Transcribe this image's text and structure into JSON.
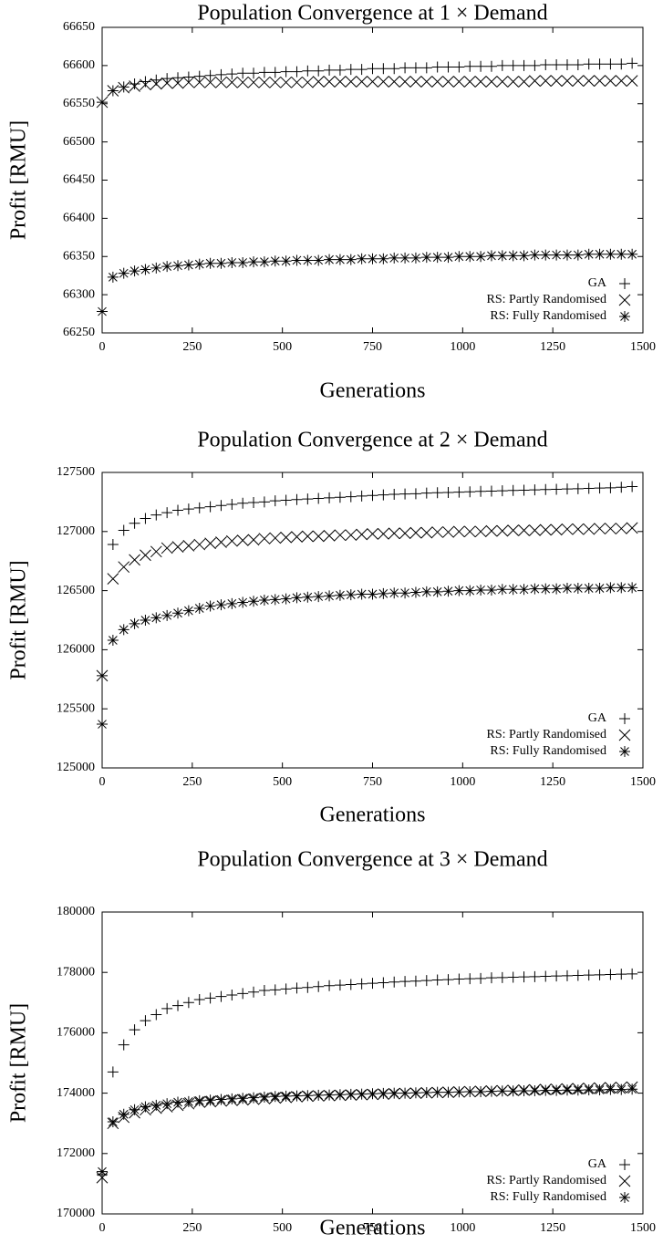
{
  "chart_data": [
    {
      "type": "scatter",
      "title": "Population Convergence at 1 × Demand",
      "xlabel": "Generations",
      "ylabel": "Profit [RMU]",
      "x": [
        0,
        30,
        60,
        90,
        120,
        150,
        180,
        210,
        240,
        270,
        300,
        330,
        360,
        390,
        420,
        450,
        480,
        510,
        540,
        570,
        600,
        630,
        660,
        690,
        720,
        750,
        780,
        810,
        840,
        870,
        900,
        930,
        960,
        990,
        1020,
        1050,
        1080,
        1110,
        1140,
        1170,
        1200,
        1230,
        1260,
        1290,
        1320,
        1350,
        1380,
        1410,
        1440,
        1470
      ],
      "xlim": [
        0,
        1500
      ],
      "xticks": [
        0,
        250,
        500,
        750,
        1000,
        1250,
        1500
      ],
      "ylim": [
        66250,
        66650
      ],
      "yticks": [
        66250,
        66300,
        66350,
        66400,
        66450,
        66500,
        66550,
        66600,
        66650
      ],
      "legend": "lower right",
      "series": [
        {
          "name": "GA",
          "color": "#000000",
          "marker": "plus",
          "values": [
            66552,
            66567,
            66572,
            66576,
            66579,
            66581,
            66583,
            66584,
            66585,
            66586,
            66587,
            66588,
            66589,
            66590,
            66590,
            66591,
            66591,
            66592,
            66592,
            66593,
            66593,
            66594,
            66594,
            66595,
            66595,
            66596,
            66596,
            66596,
            66597,
            66597,
            66597,
            66598,
            66598,
            66598,
            66599,
            66599,
            66599,
            66600,
            66600,
            66600,
            66600,
            66601,
            66601,
            66601,
            66601,
            66602,
            66602,
            66602,
            66602,
            66603
          ]
        },
        {
          "name": "RS: Partly Randomised",
          "color": "#000000",
          "marker": "cross",
          "values": [
            66552,
            66567,
            66571,
            66573,
            66575,
            66576,
            66577,
            66577,
            66578,
            66578,
            66578,
            66578,
            66578,
            66578,
            66578,
            66578,
            66578,
            66578,
            66578,
            66578,
            66579,
            66579,
            66579,
            66579,
            66579,
            66579,
            66579,
            66579,
            66579,
            66579,
            66579,
            66579,
            66579,
            66579,
            66579,
            66579,
            66579,
            66579,
            66579,
            66579,
            66580,
            66580,
            66580,
            66580,
            66580,
            66580,
            66580,
            66580,
            66580,
            66580
          ]
        },
        {
          "name": "RS: Fully Randomised",
          "color": "#000000",
          "marker": "star",
          "values": [
            66278,
            66323,
            66328,
            66331,
            66333,
            66335,
            66337,
            66338,
            66339,
            66340,
            66341,
            66341,
            66342,
            66342,
            66343,
            66343,
            66344,
            66344,
            66345,
            66345,
            66345,
            66346,
            66346,
            66346,
            66347,
            66347,
            66347,
            66348,
            66348,
            66348,
            66349,
            66349,
            66349,
            66350,
            66350,
            66350,
            66351,
            66351,
            66351,
            66351,
            66352,
            66352,
            66352,
            66352,
            66352,
            66353,
            66353,
            66353,
            66353,
            66353
          ]
        }
      ]
    },
    {
      "type": "scatter",
      "title": "Population Convergence at 2 × Demand",
      "xlabel": "Generations",
      "ylabel": "Profit [RMU]",
      "x": [
        0,
        30,
        60,
        90,
        120,
        150,
        180,
        210,
        240,
        270,
        300,
        330,
        360,
        390,
        420,
        450,
        480,
        510,
        540,
        570,
        600,
        630,
        660,
        690,
        720,
        750,
        780,
        810,
        840,
        870,
        900,
        930,
        960,
        990,
        1020,
        1050,
        1080,
        1110,
        1140,
        1170,
        1200,
        1230,
        1260,
        1290,
        1320,
        1350,
        1380,
        1410,
        1440,
        1470
      ],
      "xlim": [
        0,
        1500
      ],
      "xticks": [
        0,
        250,
        500,
        750,
        1000,
        1250,
        1500
      ],
      "ylim": [
        125000,
        127500
      ],
      "yticks": [
        125000,
        125500,
        126000,
        126500,
        127000,
        127500
      ],
      "legend": "lower right",
      "series": [
        {
          "name": "GA",
          "color": "#000000",
          "marker": "plus",
          "values": [
            125780,
            126890,
            127010,
            127070,
            127110,
            127140,
            127160,
            127180,
            127190,
            127200,
            127210,
            127220,
            127230,
            127240,
            127245,
            127250,
            127260,
            127265,
            127270,
            127275,
            127280,
            127285,
            127290,
            127295,
            127300,
            127305,
            127310,
            127315,
            127318,
            127320,
            127325,
            127328,
            127330,
            127333,
            127336,
            127340,
            127342,
            127345,
            127348,
            127350,
            127352,
            127355,
            127357,
            127360,
            127362,
            127365,
            127368,
            127370,
            127375,
            127380
          ]
        },
        {
          "name": "RS: Partly Randomised",
          "color": "#000000",
          "marker": "cross",
          "values": [
            125780,
            126600,
            126700,
            126760,
            126800,
            126830,
            126860,
            126870,
            126880,
            126890,
            126900,
            126910,
            126920,
            126925,
            126930,
            126940,
            126945,
            126950,
            126955,
            126960,
            126960,
            126965,
            126970,
            126970,
            126975,
            126980,
            126980,
            126985,
            126985,
            126990,
            126990,
            126995,
            126995,
            127000,
            127000,
            127000,
            127005,
            127005,
            127010,
            127010,
            127010,
            127015,
            127015,
            127020,
            127020,
            127020,
            127025,
            127025,
            127025,
            127030
          ]
        },
        {
          "name": "RS: Fully Randomised",
          "color": "#000000",
          "marker": "star",
          "values": [
            125370,
            126080,
            126170,
            126220,
            126250,
            126270,
            126290,
            126310,
            126330,
            126350,
            126370,
            126380,
            126390,
            126400,
            126410,
            126420,
            126425,
            126430,
            126440,
            126445,
            126450,
            126455,
            126460,
            126465,
            126470,
            126470,
            126475,
            126480,
            126480,
            126485,
            126490,
            126490,
            126495,
            126500,
            126500,
            126505,
            126505,
            126510,
            126510,
            126510,
            126515,
            126515,
            126515,
            126520,
            126520,
            126520,
            126520,
            126525,
            126525,
            126525
          ]
        }
      ]
    },
    {
      "type": "scatter",
      "title": "Population Convergence at 3 × Demand",
      "xlabel": "Generations",
      "ylabel": "Profit [RMU]",
      "x": [
        0,
        30,
        60,
        90,
        120,
        150,
        180,
        210,
        240,
        270,
        300,
        330,
        360,
        390,
        420,
        450,
        480,
        510,
        540,
        570,
        600,
        630,
        660,
        690,
        720,
        750,
        780,
        810,
        840,
        870,
        900,
        930,
        960,
        990,
        1020,
        1050,
        1080,
        1110,
        1140,
        1170,
        1200,
        1230,
        1260,
        1290,
        1320,
        1350,
        1380,
        1410,
        1440,
        1470
      ],
      "xlim": [
        0,
        1500
      ],
      "xticks": [
        0,
        250,
        500,
        750,
        1000,
        1250,
        1500
      ],
      "ylim": [
        170000,
        180000
      ],
      "yticks": [
        170000,
        172000,
        174000,
        176000,
        178000,
        180000
      ],
      "legend": "lower right",
      "series": [
        {
          "name": "GA",
          "color": "#000000",
          "marker": "plus",
          "values": [
            171300,
            174700,
            175600,
            176100,
            176400,
            176600,
            176800,
            176900,
            177000,
            177100,
            177150,
            177200,
            177250,
            177300,
            177350,
            177400,
            177420,
            177450,
            177480,
            177500,
            177530,
            177560,
            177580,
            177600,
            177620,
            177640,
            177660,
            177680,
            177700,
            177710,
            177730,
            177750,
            177760,
            177780,
            177790,
            177800,
            177820,
            177830,
            177840,
            177850,
            177860,
            177870,
            177880,
            177890,
            177900,
            177910,
            177920,
            177930,
            177940,
            177950
          ]
        },
        {
          "name": "RS: Partly Randomised",
          "color": "#000000",
          "marker": "cross",
          "values": [
            171200,
            173000,
            173200,
            173350,
            173450,
            173500,
            173550,
            173600,
            173650,
            173700,
            173720,
            173740,
            173760,
            173780,
            173800,
            173820,
            173840,
            173860,
            173880,
            173900,
            173910,
            173920,
            173930,
            173940,
            173950,
            173960,
            173970,
            173980,
            173990,
            174000,
            174010,
            174020,
            174030,
            174040,
            174050,
            174060,
            174070,
            174080,
            174090,
            174100,
            174110,
            174120,
            174130,
            174140,
            174150,
            174160,
            174170,
            174180,
            174190,
            174200
          ]
        },
        {
          "name": "RS: Fully Randomised",
          "color": "#000000",
          "marker": "star",
          "values": [
            171400,
            173050,
            173300,
            173450,
            173550,
            173600,
            173650,
            173700,
            173720,
            173750,
            173770,
            173790,
            173810,
            173830,
            173850,
            173870,
            173890,
            173900,
            173910,
            173920,
            173930,
            173940,
            173950,
            173960,
            173970,
            173980,
            173990,
            174000,
            174000,
            174010,
            174020,
            174030,
            174030,
            174040,
            174050,
            174050,
            174060,
            174070,
            174070,
            174080,
            174080,
            174090,
            174090,
            174100,
            174100,
            174110,
            174110,
            174120,
            174120,
            174130
          ]
        }
      ]
    }
  ]
}
